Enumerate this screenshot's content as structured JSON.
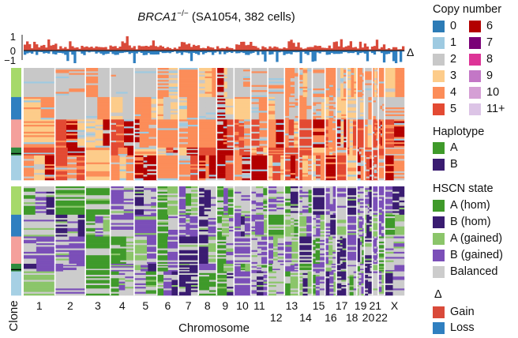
{
  "title": {
    "gene": "BRCA1",
    "superscript": "−/−",
    "rest": " (SA1054, 382 cells)"
  },
  "axis": {
    "xlabel": "Chromosome",
    "ylabel": "Clone",
    "delta_symbol": "Δ",
    "delta_ticks": [
      "1",
      "0",
      "−1"
    ]
  },
  "chart_data": [
    {
      "type": "area",
      "panel": "copy-number-delta-track",
      "ylim": [
        -1,
        1
      ],
      "yticks": [
        1,
        0,
        -1
      ],
      "series": [
        {
          "name": "Gain",
          "color": "#d94a3a"
        },
        {
          "name": "Loss",
          "color": "#2f7fc0"
        }
      ]
    },
    {
      "type": "heatmap",
      "panel": "copy-number-heatmap",
      "rows": "cells (382)",
      "columns": "genomic bins by chromosome",
      "legend": "Copy number"
    },
    {
      "type": "heatmap",
      "panel": "hscn-state-heatmap",
      "rows": "cells (382)",
      "columns": "genomic bins by chromosome",
      "legend": "HSCN state"
    }
  ],
  "chromosomes": {
    "names": [
      "1",
      "2",
      "3",
      "4",
      "5",
      "6",
      "7",
      "8",
      "9",
      "10",
      "11",
      "12",
      "13",
      "14",
      "15",
      "16",
      "17",
      "18",
      "19",
      "20",
      "21",
      "22",
      "X"
    ],
    "upper_labels": [
      "1",
      "2",
      "3",
      "4",
      "5",
      "6",
      "7",
      "8",
      "9",
      "10",
      "11",
      "13",
      "15",
      "17",
      "19",
      "21",
      "X"
    ],
    "lower_labels": [
      "12",
      "14",
      "16",
      "18",
      "20",
      "22"
    ]
  },
  "clones": [
    "#a6d96a",
    "#2f7fc0",
    "#f4a09c",
    "#2e8b3e",
    "#a6d0e4"
  ],
  "legends": {
    "copy_number": {
      "title": "Copy number",
      "items": [
        {
          "label": "0",
          "color": "#2c7bb6"
        },
        {
          "label": "1",
          "color": "#9ecae1"
        },
        {
          "label": "2",
          "color": "#c8c8c8"
        },
        {
          "label": "3",
          "color": "#fdcc8a"
        },
        {
          "label": "4",
          "color": "#fc8d59"
        },
        {
          "label": "5",
          "color": "#e34a33"
        },
        {
          "label": "6",
          "color": "#b30000"
        },
        {
          "label": "7",
          "color": "#7a0177"
        },
        {
          "label": "8",
          "color": "#dd3497"
        },
        {
          "label": "9",
          "color": "#c377c6"
        },
        {
          "label": "10",
          "color": "#d59fd5"
        },
        {
          "label": "11+",
          "color": "#dcc4e6"
        }
      ]
    },
    "haplotype": {
      "title": "Haplotype",
      "items": [
        {
          "label": "A",
          "color": "#3f9a2a"
        },
        {
          "label": "B",
          "color": "#3a1c71"
        }
      ]
    },
    "hscn": {
      "title": "HSCN state",
      "items": [
        {
          "label": "A (hom)",
          "color": "#3f9a2a"
        },
        {
          "label": "B (hom)",
          "color": "#3a1c71"
        },
        {
          "label": "A (gained)",
          "color": "#8bc56a"
        },
        {
          "label": "B (gained)",
          "color": "#7b4fb8"
        },
        {
          "label": "Balanced",
          "color": "#cccccc"
        }
      ]
    },
    "delta": {
      "title": "Δ",
      "items": [
        {
          "label": "Gain",
          "color": "#d94a3a"
        },
        {
          "label": "Loss",
          "color": "#2f7fc0"
        }
      ]
    }
  }
}
